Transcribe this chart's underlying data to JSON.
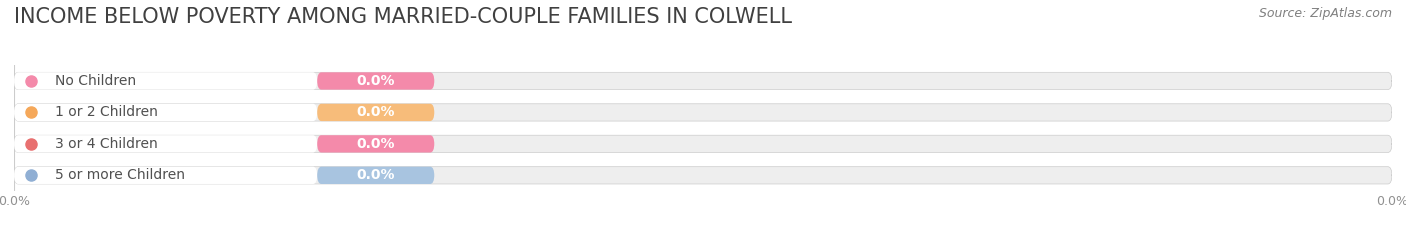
{
  "title": "INCOME BELOW POVERTY AMONG MARRIED-COUPLE FAMILIES IN COLWELL",
  "source": "Source: ZipAtlas.com",
  "categories": [
    "No Children",
    "1 or 2 Children",
    "3 or 4 Children",
    "5 or more Children"
  ],
  "values": [
    0.0,
    0.0,
    0.0,
    0.0
  ],
  "bar_colors": [
    "#f48aaa",
    "#f7bc7a",
    "#f48aaa",
    "#a8c4e0"
  ],
  "dot_colors": [
    "#f48aaa",
    "#f5a85a",
    "#e87070",
    "#90afd4"
  ],
  "background_color": "#ffffff",
  "bar_bg_color": "#eeeeee",
  "label_bg_color": "#f5f5f5",
  "title_color": "#404040",
  "source_color": "#808080",
  "value_label_color": "#ffffff",
  "category_label_color": "#505050",
  "tick_label_color": "#909090",
  "xlim": [
    0,
    100
  ],
  "bar_height": 0.55,
  "title_fontsize": 15,
  "source_fontsize": 9,
  "label_fontsize": 10,
  "value_fontsize": 10,
  "tick_fontsize": 9
}
